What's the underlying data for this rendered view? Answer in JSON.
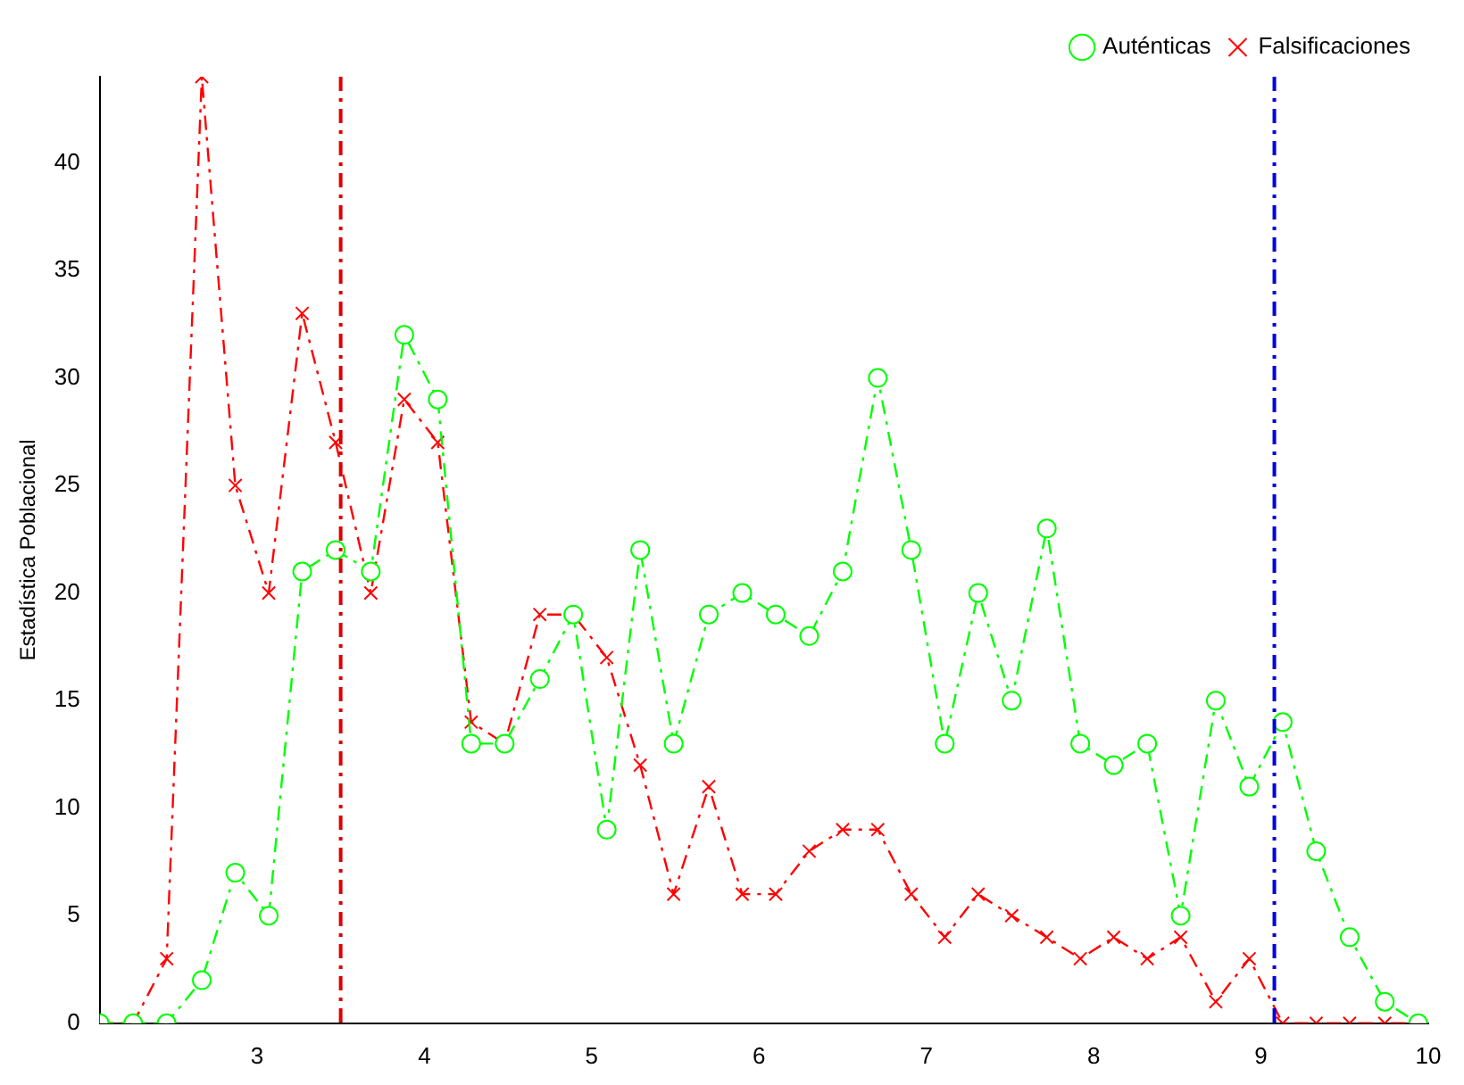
{
  "chart_data": {
    "type": "line",
    "ylabel": "Estadística Poblacional",
    "x": [
      2.06,
      2.26,
      2.46,
      2.67,
      2.87,
      3.07,
      3.27,
      3.47,
      3.68,
      3.88,
      4.08,
      4.28,
      4.48,
      4.69,
      4.89,
      5.09,
      5.29,
      5.49,
      5.7,
      5.9,
      6.1,
      6.3,
      6.5,
      6.71,
      6.91,
      7.11,
      7.31,
      7.51,
      7.72,
      7.92,
      8.12,
      8.32,
      8.52,
      8.73,
      8.93,
      9.13,
      9.33,
      9.53,
      9.74,
      9.94
    ],
    "series": [
      {
        "name": "Auténticas",
        "color": "#00ff00",
        "marker": "circle",
        "line_style": "dashed",
        "values": [
          0,
          0,
          0,
          2,
          7,
          5,
          21,
          22,
          21,
          32,
          29,
          13,
          13,
          16,
          19,
          9,
          22,
          13,
          19,
          20,
          19,
          18,
          21,
          30,
          22,
          13,
          20,
          15,
          23,
          13,
          12,
          13,
          5,
          15,
          11,
          14,
          8,
          4,
          1,
          0
        ]
      },
      {
        "name": "Falsificaciones",
        "color": "#ff0000",
        "marker": "cross",
        "line_style": "dashed",
        "values": [
          0,
          0,
          3,
          44,
          25,
          20,
          33,
          27,
          20,
          29,
          27,
          14,
          13,
          19,
          19,
          17,
          12,
          6,
          11,
          6,
          6,
          8,
          9,
          9,
          6,
          4,
          6,
          5,
          4,
          3,
          4,
          3,
          4,
          1,
          3,
          0,
          0,
          0,
          0,
          0
        ]
      }
    ],
    "xlim": [
      2.06,
      10
    ],
    "xticks": [
      3,
      4,
      5,
      6,
      7,
      8,
      9,
      10
    ],
    "ylim": [
      0,
      44
    ],
    "yticks": [
      0,
      5,
      10,
      15,
      20,
      25,
      30,
      35,
      40
    ],
    "ref_lines": [
      {
        "axis": "x",
        "value": 3.5,
        "color": "#dd0000",
        "line_style": "dashed"
      },
      {
        "axis": "x",
        "value": 9.08,
        "color": "#0000dd",
        "line_style": "dashed"
      }
    ],
    "grid": false,
    "legend": "top right"
  }
}
